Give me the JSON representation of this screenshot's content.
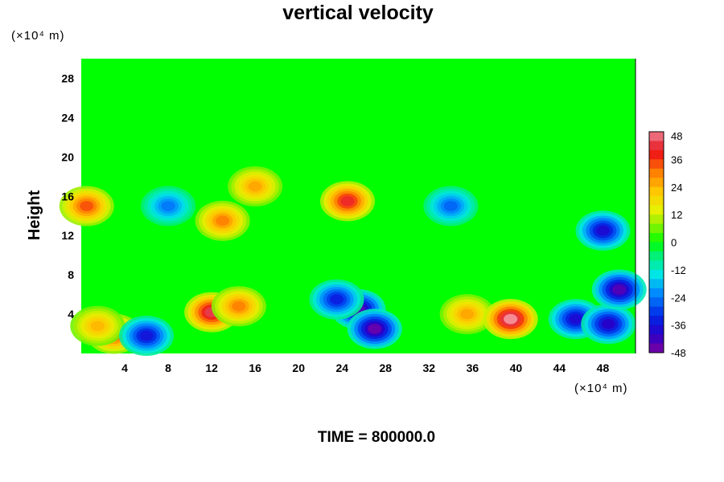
{
  "chart_data": {
    "type": "heatmap",
    "title": "vertical velocity",
    "xlabel": "",
    "ylabel": "Height",
    "x_unit_label": "(×10⁴ m)",
    "y_unit_label": "(×10⁴ m)",
    "xlim": [
      0,
      51
    ],
    "ylim": [
      0,
      30
    ],
    "x_ticks": [
      4,
      8,
      12,
      16,
      20,
      24,
      28,
      32,
      36,
      40,
      44,
      48
    ],
    "y_ticks": [
      4,
      8,
      12,
      16,
      20,
      24,
      28
    ],
    "colorbar": {
      "ticks": [
        48,
        36,
        24,
        12,
        0,
        -12,
        -24,
        -36,
        -48
      ],
      "min": -48,
      "max": 48,
      "levels": 24
    },
    "footer": "TIME = 800000.0",
    "features": [
      {
        "x": 3.0,
        "y": 2.0,
        "value": 36
      },
      {
        "x": 1.5,
        "y": 2.8,
        "value": 24
      },
      {
        "x": 6.0,
        "y": 1.8,
        "value": -36
      },
      {
        "x": 12.0,
        "y": 4.2,
        "value": 44
      },
      {
        "x": 14.5,
        "y": 4.8,
        "value": 30
      },
      {
        "x": 25.5,
        "y": 4.5,
        "value": -44
      },
      {
        "x": 23.5,
        "y": 5.5,
        "value": -34
      },
      {
        "x": 27.0,
        "y": 2.5,
        "value": -46
      },
      {
        "x": 35.5,
        "y": 4.0,
        "value": 26
      },
      {
        "x": 39.5,
        "y": 3.5,
        "value": 48
      },
      {
        "x": 45.5,
        "y": 3.5,
        "value": -38
      },
      {
        "x": 48.5,
        "y": 3.0,
        "value": -40
      },
      {
        "x": 49.5,
        "y": 6.5,
        "value": -44
      },
      {
        "x": 24.5,
        "y": 15.5,
        "value": 40
      },
      {
        "x": 16.0,
        "y": 17.0,
        "value": 26
      },
      {
        "x": 13.0,
        "y": 13.5,
        "value": 30
      },
      {
        "x": 34.0,
        "y": 15.0,
        "value": -26
      },
      {
        "x": 48.0,
        "y": 12.5,
        "value": -38
      },
      {
        "x": 8.0,
        "y": 15.0,
        "value": -24
      },
      {
        "x": 0.5,
        "y": 15.0,
        "value": 34
      }
    ]
  }
}
